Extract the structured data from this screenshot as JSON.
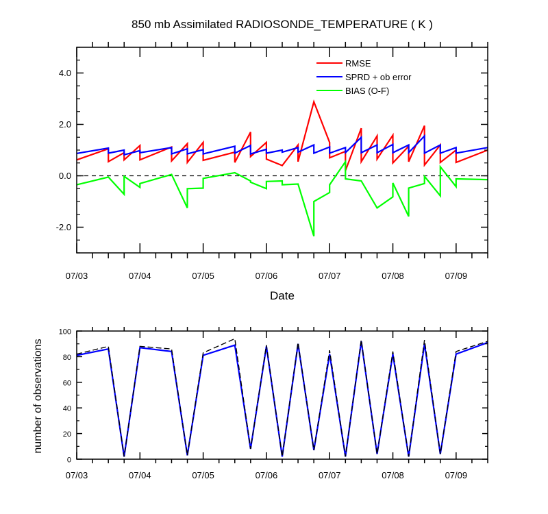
{
  "chart_data": [
    {
      "type": "line",
      "title": "850 mb Assimilated RADIOSONDE_TEMPERATURE ( K )",
      "xlabel": "Date",
      "ylabel": "",
      "x_tick_labels": [
        "07/03",
        "07/04",
        "07/05",
        "07/06",
        "07/07",
        "07/08",
        "07/09"
      ],
      "y_tick_labels": [
        "4.0",
        "2.0",
        "0.0",
        "-2.0"
      ],
      "y_ticks": [
        4,
        2,
        0,
        -2
      ],
      "xlim": [
        0,
        6.5
      ],
      "ylim": [
        -3,
        5
      ],
      "zero_line": {
        "style": "dashed",
        "color": "#000000"
      },
      "legend_position": "top-right",
      "series": [
        {
          "name": "RMSE",
          "color": "#ff0000",
          "x": [
            0,
            0.5,
            0.5,
            0.75,
            0.75,
            1,
            1,
            1.5,
            1.5,
            1.75,
            1.75,
            2,
            2,
            2.5,
            2.5,
            2.75,
            2.75,
            3,
            3,
            3.25,
            3.5,
            3.5,
            3.75,
            4,
            4,
            4.25,
            4.25,
            4.5,
            4.5,
            4.75,
            4.75,
            5,
            5,
            5.25,
            5.25,
            5.5,
            5.5,
            5.75,
            5.75,
            6,
            6,
            6.5
          ],
          "y": [
            0.62,
            1.05,
            0.55,
            0.9,
            0.62,
            1.18,
            0.62,
            1.12,
            0.58,
            1.25,
            0.52,
            1.3,
            0.6,
            0.92,
            0.52,
            1.7,
            0.75,
            1.3,
            0.65,
            0.4,
            1.2,
            0.55,
            2.88,
            1.3,
            0.7,
            0.95,
            0.2,
            1.85,
            0.55,
            1.55,
            0.65,
            1.58,
            0.5,
            1.15,
            0.55,
            1.95,
            0.42,
            1.2,
            0.52,
            1.0,
            0.52,
            1.0
          ]
        },
        {
          "name": "SPRD + ob error",
          "color": "#0000ff",
          "x": [
            0,
            0.5,
            0.5,
            0.75,
            0.75,
            1,
            1,
            1.5,
            1.5,
            1.75,
            1.75,
            2,
            2,
            2.5,
            2.5,
            2.75,
            2.75,
            3,
            3,
            3.25,
            3.25,
            3.5,
            3.5,
            3.75,
            3.75,
            4,
            4,
            4.25,
            4.25,
            4.5,
            4.5,
            4.75,
            4.75,
            5,
            5,
            5.25,
            5.25,
            5.5,
            5.5,
            5.75,
            5.75,
            6,
            6,
            6.5
          ],
          "y": [
            0.87,
            1.08,
            0.88,
            1.0,
            0.82,
            0.98,
            0.9,
            1.1,
            0.85,
            1.05,
            0.85,
            1.02,
            0.85,
            1.15,
            0.88,
            1.18,
            0.85,
            1.03,
            0.88,
            1.0,
            0.92,
            1.1,
            0.92,
            1.2,
            0.88,
            1.12,
            0.88,
            1.1,
            0.9,
            1.5,
            0.9,
            1.2,
            0.9,
            1.22,
            0.9,
            1.2,
            0.9,
            1.55,
            0.88,
            1.2,
            0.88,
            1.1,
            0.88,
            1.1
          ]
        },
        {
          "name": "BIAS (O-F)",
          "color": "#00ff00",
          "x": [
            0,
            0.5,
            0.75,
            0.75,
            1,
            1,
            1.5,
            1.75,
            1.75,
            2,
            2,
            2.5,
            2.75,
            2.75,
            3,
            3,
            3.25,
            3.25,
            3.5,
            3.75,
            3.75,
            4,
            4,
            4.25,
            4.25,
            4.5,
            4.75,
            5,
            5,
            5.25,
            5.25,
            5.5,
            5.5,
            5.75,
            5.75,
            6,
            6,
            6.5
          ],
          "y": [
            -0.35,
            -0.05,
            -0.72,
            -0.02,
            -0.45,
            -0.3,
            0.05,
            -1.25,
            -0.5,
            -0.48,
            -0.1,
            0.12,
            -0.2,
            -0.25,
            -0.5,
            -0.22,
            -0.2,
            -0.35,
            -0.32,
            -2.35,
            -1.0,
            -0.65,
            -0.35,
            0.55,
            -0.12,
            -0.2,
            -1.25,
            -0.82,
            -0.28,
            -1.58,
            -0.48,
            -0.3,
            -0.02,
            -0.78,
            0.35,
            -0.42,
            -0.12,
            -0.15
          ]
        }
      ]
    },
    {
      "type": "line",
      "title": "",
      "xlabel": "",
      "ylabel": "number of observations",
      "x_tick_labels": [
        "07/03",
        "07/04",
        "07/05",
        "07/06",
        "07/07",
        "07/08",
        "07/09"
      ],
      "y_tick_labels": [
        "100",
        "80",
        "60",
        "40",
        "20",
        "0"
      ],
      "y_ticks": [
        100,
        80,
        60,
        40,
        20,
        0
      ],
      "xlim": [
        0,
        6.5
      ],
      "ylim": [
        0,
        100
      ],
      "series": [
        {
          "name": "",
          "style": "solid",
          "color": "#0000ff",
          "x": [
            0,
            0.5,
            0.75,
            1,
            1.5,
            1.75,
            2,
            2.5,
            2.75,
            3,
            3.25,
            3.5,
            3.75,
            4,
            4.25,
            4.5,
            4.75,
            5,
            5.25,
            5.5,
            5.75,
            6,
            6.5
          ],
          "y": [
            81,
            86,
            2,
            87,
            84,
            3,
            81,
            89,
            8,
            88,
            2,
            90,
            7,
            82,
            2,
            92,
            4,
            82,
            2,
            90,
            4,
            82,
            91
          ]
        },
        {
          "name": "",
          "style": "dashed",
          "color": "#000000",
          "x": [
            0,
            0.5,
            0.75,
            1,
            1.5,
            1.75,
            2,
            2.5,
            2.75,
            3,
            3.25,
            3.5,
            3.75,
            4,
            4.25,
            4.5,
            4.75,
            5,
            5.25,
            5.5,
            5.75,
            6,
            6.5
          ],
          "y": [
            82,
            88,
            2,
            88,
            86,
            3,
            83,
            94,
            8,
            89,
            2,
            91,
            7,
            85,
            2,
            93,
            4,
            84,
            2,
            93,
            4,
            84,
            92
          ]
        }
      ]
    }
  ]
}
